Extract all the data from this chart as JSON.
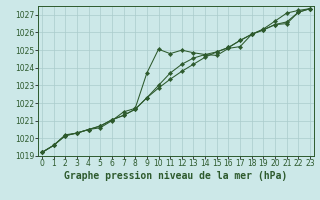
{
  "title": "Graphe pression niveau de la mer (hPa)",
  "x_hours": [
    0,
    1,
    2,
    3,
    4,
    5,
    6,
    7,
    8,
    9,
    10,
    11,
    12,
    13,
    14,
    15,
    16,
    17,
    18,
    19,
    20,
    21,
    22,
    23
  ],
  "line1": [
    1019.2,
    1019.6,
    1020.2,
    1020.3,
    1020.5,
    1020.6,
    1021.0,
    1021.5,
    1021.7,
    1023.7,
    1025.05,
    1024.8,
    1025.0,
    1024.85,
    1024.75,
    1024.7,
    1025.1,
    1025.2,
    1025.9,
    1026.2,
    1026.65,
    1027.1,
    1027.25,
    1027.35
  ],
  "line2": [
    1019.2,
    1019.6,
    1020.15,
    1020.3,
    1020.5,
    1020.7,
    1021.05,
    1021.3,
    1021.65,
    1022.3,
    1023.0,
    1023.7,
    1024.2,
    1024.55,
    1024.75,
    1024.9,
    1025.15,
    1025.55,
    1025.9,
    1026.15,
    1026.45,
    1026.6,
    1027.15,
    1027.35
  ],
  "line3": [
    1019.2,
    1019.6,
    1020.15,
    1020.3,
    1020.5,
    1020.7,
    1021.05,
    1021.3,
    1021.65,
    1022.3,
    1022.85,
    1023.35,
    1023.8,
    1024.2,
    1024.6,
    1024.9,
    1025.15,
    1025.55,
    1025.9,
    1026.15,
    1026.45,
    1026.5,
    1027.15,
    1027.35
  ],
  "ylim": [
    1019.0,
    1027.5
  ],
  "yticks": [
    1019,
    1020,
    1021,
    1022,
    1023,
    1024,
    1025,
    1026,
    1027
  ],
  "bg_color": "#cce8e8",
  "grid_color": "#aacccc",
  "line_color": "#2d5a2d",
  "title_color": "#2d5a2d",
  "title_fontsize": 7,
  "tick_fontsize": 5.5
}
